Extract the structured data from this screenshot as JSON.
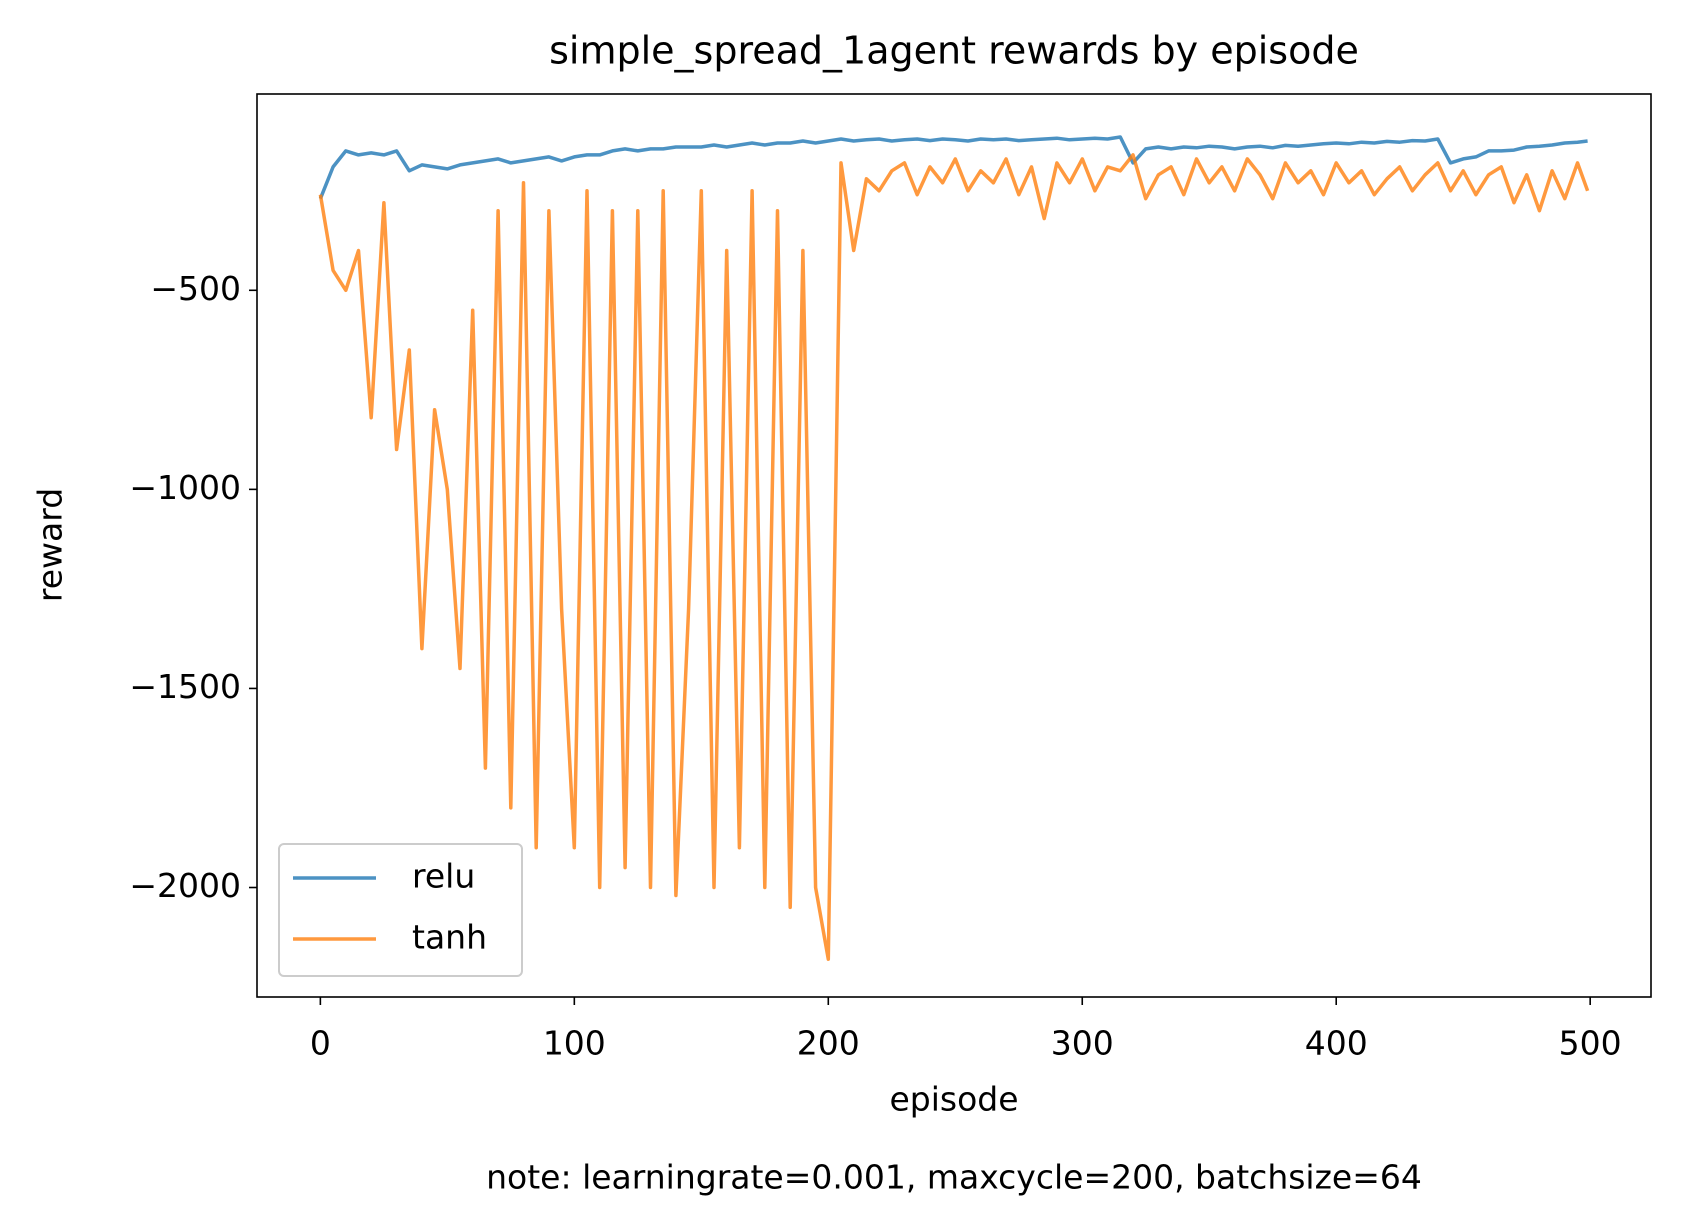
{
  "chart_data": {
    "type": "line",
    "title": "simple_spread_1agent rewards by episode",
    "xlabel": "episode",
    "ylabel": "reward",
    "note": "note: learningrate=0.001, maxcycle=200, batchsize=64",
    "x": [
      0,
      5,
      10,
      15,
      20,
      25,
      30,
      35,
      40,
      45,
      50,
      55,
      60,
      65,
      70,
      75,
      80,
      85,
      90,
      95,
      100,
      105,
      110,
      115,
      120,
      125,
      130,
      135,
      140,
      145,
      150,
      155,
      160,
      165,
      170,
      175,
      180,
      185,
      190,
      195,
      200,
      205,
      210,
      215,
      220,
      225,
      230,
      235,
      240,
      245,
      250,
      255,
      260,
      265,
      270,
      275,
      280,
      285,
      290,
      295,
      300,
      305,
      310,
      315,
      320,
      325,
      330,
      335,
      340,
      345,
      350,
      355,
      360,
      365,
      370,
      375,
      380,
      385,
      390,
      395,
      400,
      405,
      410,
      415,
      420,
      425,
      430,
      435,
      440,
      445,
      450,
      455,
      460,
      465,
      470,
      475,
      480,
      485,
      490,
      495,
      499
    ],
    "series": [
      {
        "name": "relu",
        "color": "#1f77b4",
        "values": [
          -270,
          -190,
          -150,
          -160,
          -155,
          -160,
          -150,
          -200,
          -185,
          -190,
          -195,
          -185,
          -180,
          -175,
          -170,
          -180,
          -175,
          -170,
          -165,
          -175,
          -165,
          -160,
          -160,
          -150,
          -145,
          -150,
          -145,
          -145,
          -140,
          -140,
          -140,
          -135,
          -140,
          -135,
          -130,
          -135,
          -130,
          -130,
          -125,
          -130,
          -125,
          -120,
          -125,
          -122,
          -120,
          -125,
          -122,
          -120,
          -124,
          -120,
          -122,
          -125,
          -120,
          -122,
          -120,
          -124,
          -122,
          -120,
          -118,
          -122,
          -120,
          -118,
          -120,
          -115,
          -180,
          -145,
          -140,
          -145,
          -140,
          -142,
          -138,
          -140,
          -145,
          -140,
          -138,
          -142,
          -136,
          -138,
          -135,
          -132,
          -130,
          -132,
          -128,
          -130,
          -126,
          -128,
          -124,
          -125,
          -120,
          -180,
          -170,
          -165,
          -150,
          -150,
          -148,
          -140,
          -138,
          -135,
          -130,
          -128,
          -125
        ]
      },
      {
        "name": "tanh",
        "color": "#ff7f0e",
        "values": [
          -260,
          -450,
          -500,
          -400,
          -820,
          -280,
          -900,
          -650,
          -1400,
          -800,
          -1000,
          -1450,
          -550,
          -1700,
          -300,
          -1800,
          -230,
          -1900,
          -300,
          -1300,
          -1900,
          -250,
          -2000,
          -300,
          -1950,
          -300,
          -2000,
          -250,
          -2020,
          -1300,
          -250,
          -2000,
          -400,
          -1900,
          -250,
          -2000,
          -300,
          -2050,
          -400,
          -2000,
          -2180,
          -180,
          -400,
          -220,
          -250,
          -200,
          -180,
          -260,
          -190,
          -230,
          -170,
          -250,
          -200,
          -230,
          -170,
          -260,
          -190,
          -320,
          -180,
          -230,
          -170,
          -250,
          -190,
          -200,
          -160,
          -270,
          -210,
          -190,
          -260,
          -170,
          -230,
          -190,
          -250,
          -170,
          -210,
          -270,
          -180,
          -230,
          -200,
          -260,
          -180,
          -230,
          -200,
          -260,
          -220,
          -190,
          -250,
          -210,
          -180,
          -250,
          -200,
          -260,
          -210,
          -190,
          -280,
          -210,
          -300,
          -200,
          -270,
          -180,
          -250
        ]
      }
    ],
    "alpha": 0.8,
    "xlim": [
      -24.95,
      523.95
    ],
    "xticks": [
      0,
      100,
      200,
      300,
      400,
      500
    ],
    "ylim": [
      -2275,
      -7
    ],
    "yticks": [
      {
        "value": -500,
        "label": "−500"
      },
      {
        "value": -1000,
        "label": "−1000"
      },
      {
        "value": -1500,
        "label": "−1500"
      },
      {
        "value": -2000,
        "label": "−2000"
      }
    ],
    "legend": "lower left"
  }
}
